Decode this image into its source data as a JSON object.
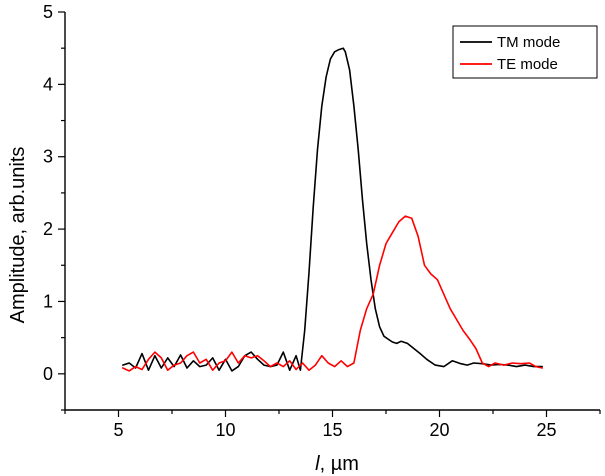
{
  "chart_data": {
    "type": "line",
    "xlabel_italic": "l",
    "xlabel_rest": ", µm",
    "ylabel": "Amplitude, arb.units",
    "xlim": [
      2.5,
      27.5
    ],
    "ylim": [
      -0.5,
      5
    ],
    "xticks": [
      5,
      10,
      15,
      20,
      25
    ],
    "yticks": [
      0,
      1,
      2,
      3,
      4,
      5
    ],
    "xminor": [
      2.5,
      7.5,
      12.5,
      17.5,
      22.5,
      27.5
    ],
    "yminor": [
      -0.5,
      0.5,
      1.5,
      2.5,
      3.5,
      4.5
    ],
    "grid": false,
    "legend_position": "top-right",
    "series": [
      {
        "name": "TM mode",
        "color": "#000000",
        "x": [
          5.2,
          5.5,
          5.8,
          6.1,
          6.4,
          6.7,
          7.0,
          7.3,
          7.6,
          7.9,
          8.2,
          8.5,
          8.8,
          9.1,
          9.4,
          9.7,
          10.0,
          10.3,
          10.6,
          10.9,
          11.2,
          11.5,
          11.8,
          12.1,
          12.4,
          12.7,
          13.0,
          13.3,
          13.5,
          13.7,
          13.9,
          14.1,
          14.3,
          14.5,
          14.7,
          14.9,
          15.1,
          15.3,
          15.5,
          15.6,
          15.8,
          16.0,
          16.2,
          16.4,
          16.6,
          16.8,
          17.0,
          17.2,
          17.4,
          17.6,
          17.8,
          18.0,
          18.2,
          18.5,
          18.8,
          19.1,
          19.4,
          19.8,
          20.2,
          20.6,
          21.0,
          21.3,
          21.6,
          22.0,
          22.4,
          22.8,
          23.2,
          23.6,
          24.0,
          24.4,
          24.8
        ],
        "y": [
          0.12,
          0.15,
          0.08,
          0.28,
          0.05,
          0.25,
          0.08,
          0.22,
          0.1,
          0.26,
          0.08,
          0.18,
          0.1,
          0.12,
          0.22,
          0.05,
          0.2,
          0.04,
          0.1,
          0.25,
          0.3,
          0.2,
          0.12,
          0.1,
          0.12,
          0.3,
          0.05,
          0.25,
          0.05,
          0.6,
          1.4,
          2.3,
          3.1,
          3.7,
          4.1,
          4.35,
          4.45,
          4.48,
          4.5,
          4.45,
          4.2,
          3.7,
          3.1,
          2.4,
          1.8,
          1.3,
          0.9,
          0.65,
          0.52,
          0.48,
          0.44,
          0.42,
          0.45,
          0.42,
          0.35,
          0.28,
          0.2,
          0.12,
          0.1,
          0.18,
          0.14,
          0.12,
          0.15,
          0.14,
          0.12,
          0.13,
          0.12,
          0.1,
          0.12,
          0.1,
          0.1
        ]
      },
      {
        "name": "TE mode",
        "color": "#ff0000",
        "x": [
          5.2,
          5.5,
          5.8,
          6.1,
          6.4,
          6.7,
          7.0,
          7.3,
          7.6,
          7.9,
          8.2,
          8.5,
          8.8,
          9.1,
          9.4,
          9.7,
          10.0,
          10.3,
          10.6,
          10.9,
          11.2,
          11.5,
          11.8,
          12.1,
          12.4,
          12.7,
          13.0,
          13.3,
          13.6,
          13.9,
          14.2,
          14.5,
          14.8,
          15.1,
          15.4,
          15.7,
          16.0,
          16.3,
          16.6,
          16.9,
          17.2,
          17.5,
          17.8,
          18.1,
          18.4,
          18.7,
          19.0,
          19.3,
          19.6,
          19.9,
          20.2,
          20.5,
          20.8,
          21.1,
          21.4,
          21.7,
          22.0,
          22.3,
          22.6,
          23.0,
          23.4,
          23.8,
          24.2,
          24.5,
          24.8
        ],
        "y": [
          0.08,
          0.04,
          0.1,
          0.06,
          0.2,
          0.3,
          0.22,
          0.05,
          0.12,
          0.15,
          0.25,
          0.3,
          0.15,
          0.2,
          0.05,
          0.15,
          0.18,
          0.3,
          0.15,
          0.25,
          0.22,
          0.25,
          0.18,
          0.1,
          0.15,
          0.1,
          0.18,
          0.06,
          0.15,
          0.05,
          0.12,
          0.25,
          0.15,
          0.1,
          0.18,
          0.1,
          0.15,
          0.6,
          0.9,
          1.1,
          1.5,
          1.8,
          1.95,
          2.1,
          2.18,
          2.15,
          1.9,
          1.5,
          1.38,
          1.3,
          1.1,
          0.9,
          0.75,
          0.6,
          0.48,
          0.35,
          0.15,
          0.1,
          0.15,
          0.12,
          0.15,
          0.14,
          0.15,
          0.1,
          0.08
        ]
      }
    ]
  }
}
